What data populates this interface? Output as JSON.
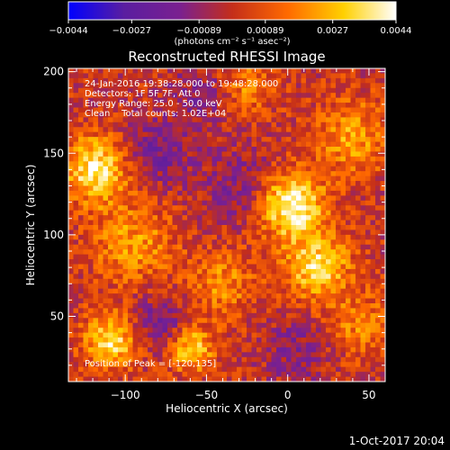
{
  "chart_data": {
    "type": "heatmap",
    "title": "Reconstructed RHESSI Image",
    "xlabel": "Heliocentric X (arcsec)",
    "ylabel": "Heliocentric Y (arcsec)",
    "xlim": [
      -135,
      60
    ],
    "ylim": [
      10,
      202
    ],
    "x_ticks": [
      {
        "value": -100,
        "label": "−100"
      },
      {
        "value": -50,
        "label": "−50"
      },
      {
        "value": 0,
        "label": "0"
      },
      {
        "value": 50,
        "label": "50"
      }
    ],
    "y_ticks": [
      {
        "value": 50,
        "label": "50"
      },
      {
        "value": 100,
        "label": "100"
      },
      {
        "value": 150,
        "label": "150"
      },
      {
        "value": 200,
        "label": "200"
      }
    ],
    "colorbar": {
      "range": [
        -0.0044,
        0.0044
      ],
      "ticks": [
        {
          "value": -0.0044,
          "label": "−0.0044"
        },
        {
          "value": -0.0027,
          "label": "−0.0027"
        },
        {
          "value": -0.00089,
          "label": "−0.00089"
        },
        {
          "value": 0.00089,
          "label": "0.00089"
        },
        {
          "value": 0.0027,
          "label": "0.0027"
        },
        {
          "value": 0.0044,
          "label": "0.0044"
        }
      ],
      "unit_label": "(photons cm⁻² s⁻¹ asec⁻²)",
      "stops": [
        "#0000ff",
        "#5a1ea0",
        "#7a2090",
        "#c42e1a",
        "#ff6a00",
        "#ffd000",
        "#ffffff"
      ]
    },
    "annotations": [
      "24-Jan-2016 19:38:28.000 to 19:48:28.000",
      "Detectors: 1F 5F 7F, Att 0",
      "Energy Range: 25.0 - 50.0 keV",
      "Clean    Total counts: 1.02E+04"
    ],
    "peak_label": "Position of Peak = [-120,135]",
    "grid": false,
    "peak": {
      "x": -120,
      "y": 135
    },
    "blobs": [
      {
        "x": 2,
        "y": 118,
        "amp": 0.0044,
        "sigma": 14
      },
      {
        "x": -118,
        "y": 140,
        "amp": 0.0038,
        "sigma": 14
      },
      {
        "x": 18,
        "y": 80,
        "amp": 0.0034,
        "sigma": 14
      },
      {
        "x": -108,
        "y": 35,
        "amp": 0.0034,
        "sigma": 12
      },
      {
        "x": -60,
        "y": 30,
        "amp": 0.0032,
        "sigma": 10
      },
      {
        "x": -40,
        "y": 70,
        "amp": 0.0018,
        "sigma": 14
      },
      {
        "x": -95,
        "y": 95,
        "amp": 0.002,
        "sigma": 18
      },
      {
        "x": 40,
        "y": 160,
        "amp": 0.0022,
        "sigma": 16
      },
      {
        "x": -25,
        "y": 190,
        "amp": 0.0016,
        "sigma": 12
      },
      {
        "x": 45,
        "y": 45,
        "amp": 0.0016,
        "sigma": 14
      },
      {
        "x": -80,
        "y": 150,
        "amp": -0.0018,
        "sigma": 14
      },
      {
        "x": -30,
        "y": 130,
        "amp": -0.0014,
        "sigma": 16
      },
      {
        "x": -80,
        "y": 45,
        "amp": -0.002,
        "sigma": 12
      },
      {
        "x": -55,
        "y": 185,
        "amp": -0.0014,
        "sigma": 12
      },
      {
        "x": 5,
        "y": 30,
        "amp": -0.0012,
        "sigma": 14
      }
    ]
  },
  "footer": {
    "timestamp": "1-Oct-2017 20:04"
  }
}
